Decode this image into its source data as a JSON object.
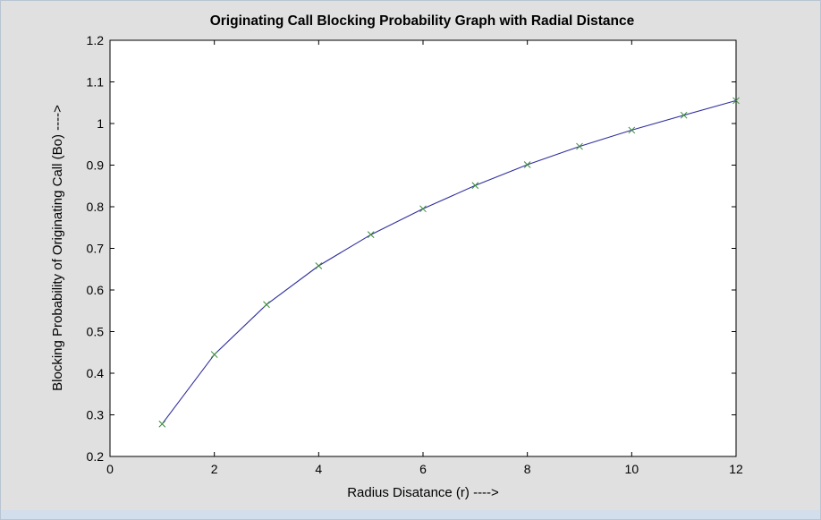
{
  "chart_data": {
    "type": "line",
    "title": "Originating Call Blocking Probability Graph with Radial Distance",
    "xlabel": "Radius Disatance (r)  ---->",
    "ylabel": "Blocking Probability of Originating Call (Bo) ---->",
    "xlim": [
      0,
      12
    ],
    "ylim": [
      0.2,
      1.2
    ],
    "x_ticks": [
      "0",
      "2",
      "4",
      "6",
      "8",
      "10",
      "12"
    ],
    "y_ticks": [
      "0.2",
      "0.3",
      "0.4",
      "0.5",
      "0.6",
      "0.7",
      "0.8",
      "0.9",
      "1",
      "1.1",
      "1.2"
    ],
    "grid": false,
    "series": [
      {
        "x": [
          1,
          2,
          3,
          4,
          5,
          6,
          7,
          8,
          9,
          10,
          11,
          12
        ],
        "values": [
          0.278,
          0.445,
          0.565,
          0.658,
          0.733,
          0.795,
          0.851,
          0.901,
          0.945,
          0.984,
          1.02,
          1.055
        ],
        "line_color": "#2e2e9e",
        "marker": "x",
        "marker_color": "#3a8a3a"
      }
    ]
  }
}
